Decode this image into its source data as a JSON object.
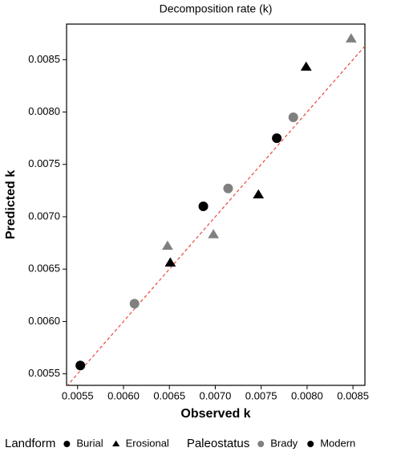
{
  "chart_data": {
    "type": "scatter",
    "title": "Decomposition rate (k)",
    "x_label": "Observed k",
    "y_label": "Predicted k",
    "xlim": [
      0.00538,
      0.00863
    ],
    "ylim": [
      0.00539,
      0.00884
    ],
    "xticks": [
      0.0055,
      {
        "value": 0.006,
        "label": "0.0060"
      },
      0.0065,
      {
        "value": 0.007,
        "label": "0.0070"
      },
      0.0075,
      {
        "value": 0.008,
        "label": "0.0080"
      },
      0.0085
    ],
    "yticks": [
      0.0055,
      {
        "value": 0.006,
        "label": "0.0060"
      },
      0.0065,
      {
        "value": 0.007,
        "label": "0.0070"
      },
      0.0075,
      {
        "value": 0.008,
        "label": "0.0080"
      },
      0.0085
    ],
    "reference_line": {
      "slope": 1,
      "intercept": 0,
      "color": "#e8493c",
      "style": "dashed"
    },
    "legends": [
      {
        "title": "Landform",
        "items": [
          {
            "label": "Burial",
            "shape": "circle"
          },
          {
            "label": "Erosional",
            "shape": "triangle"
          }
        ]
      },
      {
        "title": "Paleostatus",
        "items": [
          {
            "label": "Brady",
            "color": "#808080"
          },
          {
            "label": "Modern",
            "color": "#000000"
          }
        ]
      }
    ],
    "points": [
      {
        "x": 0.00553,
        "y": 0.00558,
        "landform": "Burial",
        "paleostatus": "Modern"
      },
      {
        "x": 0.00612,
        "y": 0.00617,
        "landform": "Burial",
        "paleostatus": "Brady"
      },
      {
        "x": 0.00648,
        "y": 0.00672,
        "landform": "Erosional",
        "paleostatus": "Brady"
      },
      {
        "x": 0.00651,
        "y": 0.00656,
        "landform": "Erosional",
        "paleostatus": "Modern"
      },
      {
        "x": 0.00687,
        "y": 0.0071,
        "landform": "Burial",
        "paleostatus": "Modern"
      },
      {
        "x": 0.00714,
        "y": 0.00727,
        "landform": "Burial",
        "paleostatus": "Brady"
      },
      {
        "x": 0.00698,
        "y": 0.00683,
        "landform": "Erosional",
        "paleostatus": "Brady"
      },
      {
        "x": 0.00747,
        "y": 0.00721,
        "landform": "Erosional",
        "paleostatus": "Modern"
      },
      {
        "x": 0.00767,
        "y": 0.00775,
        "landform": "Burial",
        "paleostatus": "Modern"
      },
      {
        "x": 0.00785,
        "y": 0.00795,
        "landform": "Burial",
        "paleostatus": "Brady"
      },
      {
        "x": 0.00799,
        "y": 0.00843,
        "landform": "Erosional",
        "paleostatus": "Modern"
      },
      {
        "x": 0.00848,
        "y": 0.0087,
        "landform": "Erosional",
        "paleostatus": "Brady"
      }
    ]
  }
}
